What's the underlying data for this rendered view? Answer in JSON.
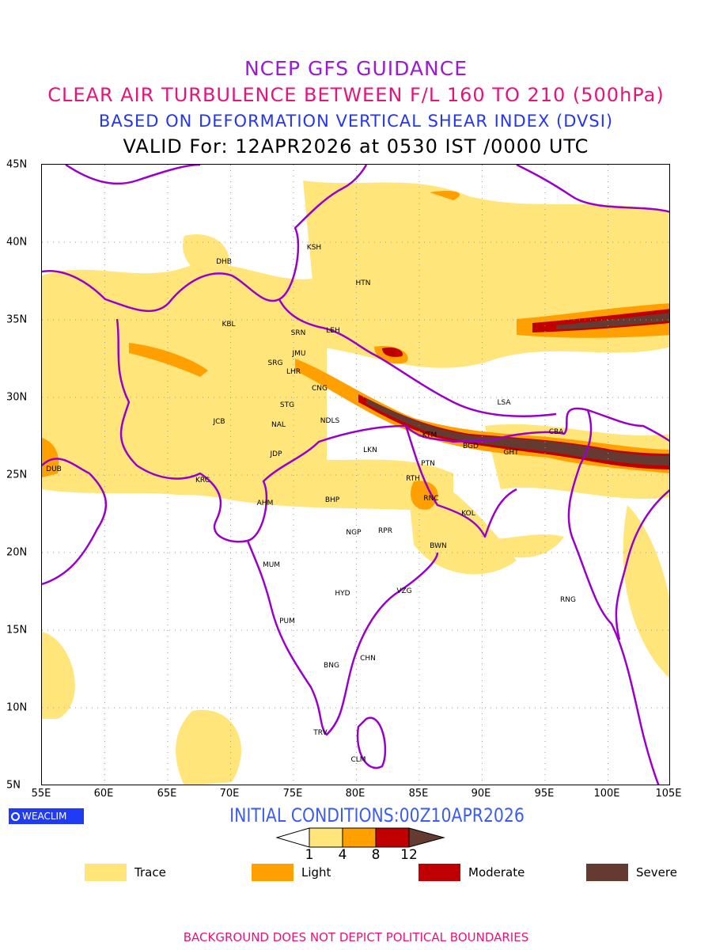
{
  "titles": {
    "line1": "NCEP GFS GUIDANCE",
    "line2": "CLEAR AIR TURBULENCE BETWEEN F/L 160 TO 210 (500hPa)",
    "line3": "BASED ON DEFORMATION VERTICAL SHEAR INDEX (DVSI)",
    "line4": "VALID For: 12APR2026 at 0530 IST /0000 UTC"
  },
  "axes": {
    "lat_ticks": [
      "45N",
      "40N",
      "35N",
      "30N",
      "25N",
      "20N",
      "15N",
      "10N",
      "5N"
    ],
    "lon_ticks": [
      "55E",
      "60E",
      "65E",
      "70E",
      "75E",
      "80E",
      "85E",
      "90E",
      "95E",
      "100E",
      "105E"
    ]
  },
  "cities": [
    "KSH",
    "DHB",
    "HTN",
    "KBL",
    "SRN",
    "LEH",
    "JMU",
    "SRG",
    "LHR",
    "CNG",
    "STG",
    "JCB",
    "NAL",
    "NDLS",
    "LKN",
    "JDP",
    "KTM",
    "BGD",
    "GHT",
    "CBA",
    "LSA",
    "PTN",
    "RTH",
    "RNC",
    "KRC",
    "DUB",
    "AHM",
    "BHP",
    "KOL",
    "NGP",
    "RPR",
    "BWN",
    "MUM",
    "HYD",
    "VZG",
    "RNG",
    "PUM",
    "CHN",
    "BNG",
    "TRV",
    "CLM"
  ],
  "logo": "WEACLIM",
  "initial_conditions": "INITIAL CONDITIONS:00Z10APR2026",
  "colorbar": {
    "ticks": [
      "1",
      "4",
      "8",
      "12"
    ],
    "colors": [
      "#ffe57a",
      "#ffa000",
      "#c00000",
      "#653a30"
    ]
  },
  "legend": [
    {
      "label": "Trace",
      "color": "#ffe57a"
    },
    {
      "label": "Light",
      "color": "#ffa000"
    },
    {
      "label": "Moderate",
      "color": "#c00000"
    },
    {
      "label": "Severe",
      "color": "#653a30"
    }
  ],
  "footer": "BACKGROUND DOES NOT DEPICT POLITICAL BOUNDARIES",
  "colors": {
    "border": "#9900cc",
    "grid": "#999999"
  }
}
